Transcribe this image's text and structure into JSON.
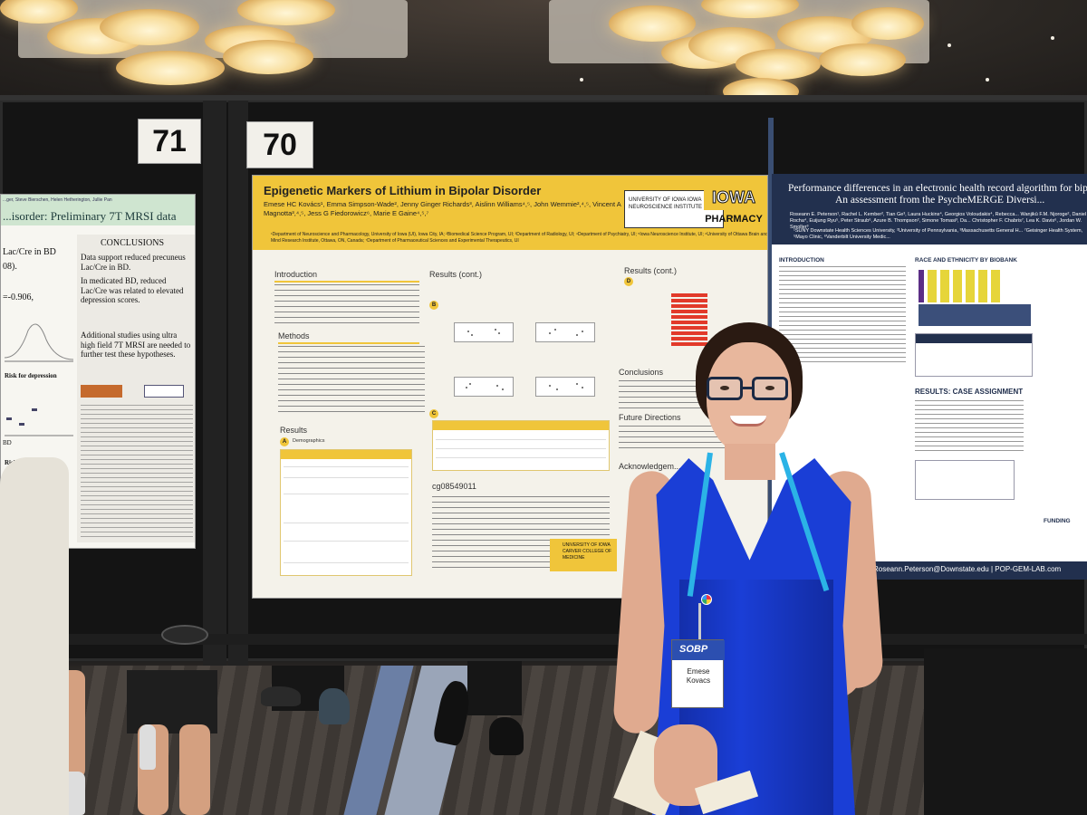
{
  "booths": {
    "left_number": "71",
    "center_number": "70"
  },
  "left_poster": {
    "subtitle_text": "...isorder: Preliminary 7T MRSI data",
    "authors_fragment": "...ger, Steve Bierschen, Helen Hetherington, Jullie Pan",
    "conclusions_heading": "CONCLUSIONS",
    "bullets": [
      "Data support reduced precuneus Lac/Cre in BD.",
      "In medicated BD, reduced Lac/Cre was related to elevated depression scores.",
      "Additional studies using ultra high field 7T MRSI are needed to further test these hypotheses."
    ],
    "left_fragments": [
      "Lac/Cre in BD",
      "08).",
      "=-0.906,",
      "Risk for depression",
      "BD",
      "Risk for depression"
    ]
  },
  "center_poster": {
    "title": "Epigenetic Markers of Lithium in Bipolar Disorder",
    "authors": "Emese HC Kovács¹, Emma Simpson-Wade², Jenny Ginger Richards³, Aislinn Williams⁴,⁵, John Wemmie²,⁴,⁵, Vincent A Magnotta³,⁴,⁵, Jess G Fiedorowicz⁶, Marie E Gaine⁴,⁵,⁷",
    "affiliations": "¹Department of Neuroscience and Pharmacology, University of Iowa (UI), Iowa City, IA; ²Biomedical Science Program, UI; ³Department of Radiology, UI; ⁴Department of Psychiatry, UI; ⁵Iowa Neuroscience Institute, UI; ⁶University of Ottawa Brain and Mind Research Institute, Ottawa, ON, Canada; ⁷Department of Pharmaceutical Sciences and Experimental Therapeutics, UI",
    "logo_text": "UNIVERSITY OF IOWA IOWA NEUROSCIENCE INSTITUTE",
    "iowa": "IOWA",
    "pharmacy": "PHARMACY",
    "sections": {
      "introduction": "Introduction",
      "methods": "Methods",
      "results": "Results",
      "results_cont_1": "Results (cont.)",
      "results_cont_2": "Results (cont.)",
      "conclusions": "Conclusions",
      "future_directions": "Future Directions",
      "acknowledgements": "Acknowledgem...",
      "demographics": "Demographics",
      "gene_id": "cg08549011"
    },
    "carver_text": "UNIVERSITY OF IOWA CARVER COLLEGE OF MEDICINE"
  },
  "right_poster": {
    "title_line_1": "Performance differences in an electronic health record algorithm for bip...",
    "title_line_2": "An assessment from the PsycheMERGE Diversi...",
    "authors": "Roseann E. Peterson¹, Rachel L. Kember², Tian Ge³, Laura Huckins⁴, Georgios Voloudakis⁴, Rebecca... Wanjikū F.M. Njoroge², Daniel Rocha⁴, Euijung Ryu⁵, Peter Straub⁶, Azure B. Thompson², Simone Tomasi³, Da... Christopher F. Chabris⁷, Lea K. Davis⁶, Jordan W. Smoller³",
    "affiliations": "¹SUNY Downstate Health Sciences University, ²University of Pennsylvania, ³Massachusetts General H... ⁷Geisinger Health System, ⁵Mayo Clinic, ⁶Vanderbilt University Medic...",
    "sections": [
      "INTRODUCTION",
      "RACE AND ETHNICITY BY BIOBANK",
      "RESULTS: CASE ASSIGNMENT",
      "FUNDING"
    ],
    "footer": "Roseann.Peterson@Downstate.edu | POP-GEM-LAB.com"
  },
  "name_badge": {
    "conference": "SOBP",
    "name_line_1": "Emese",
    "name_line_2": "Kovacs"
  }
}
